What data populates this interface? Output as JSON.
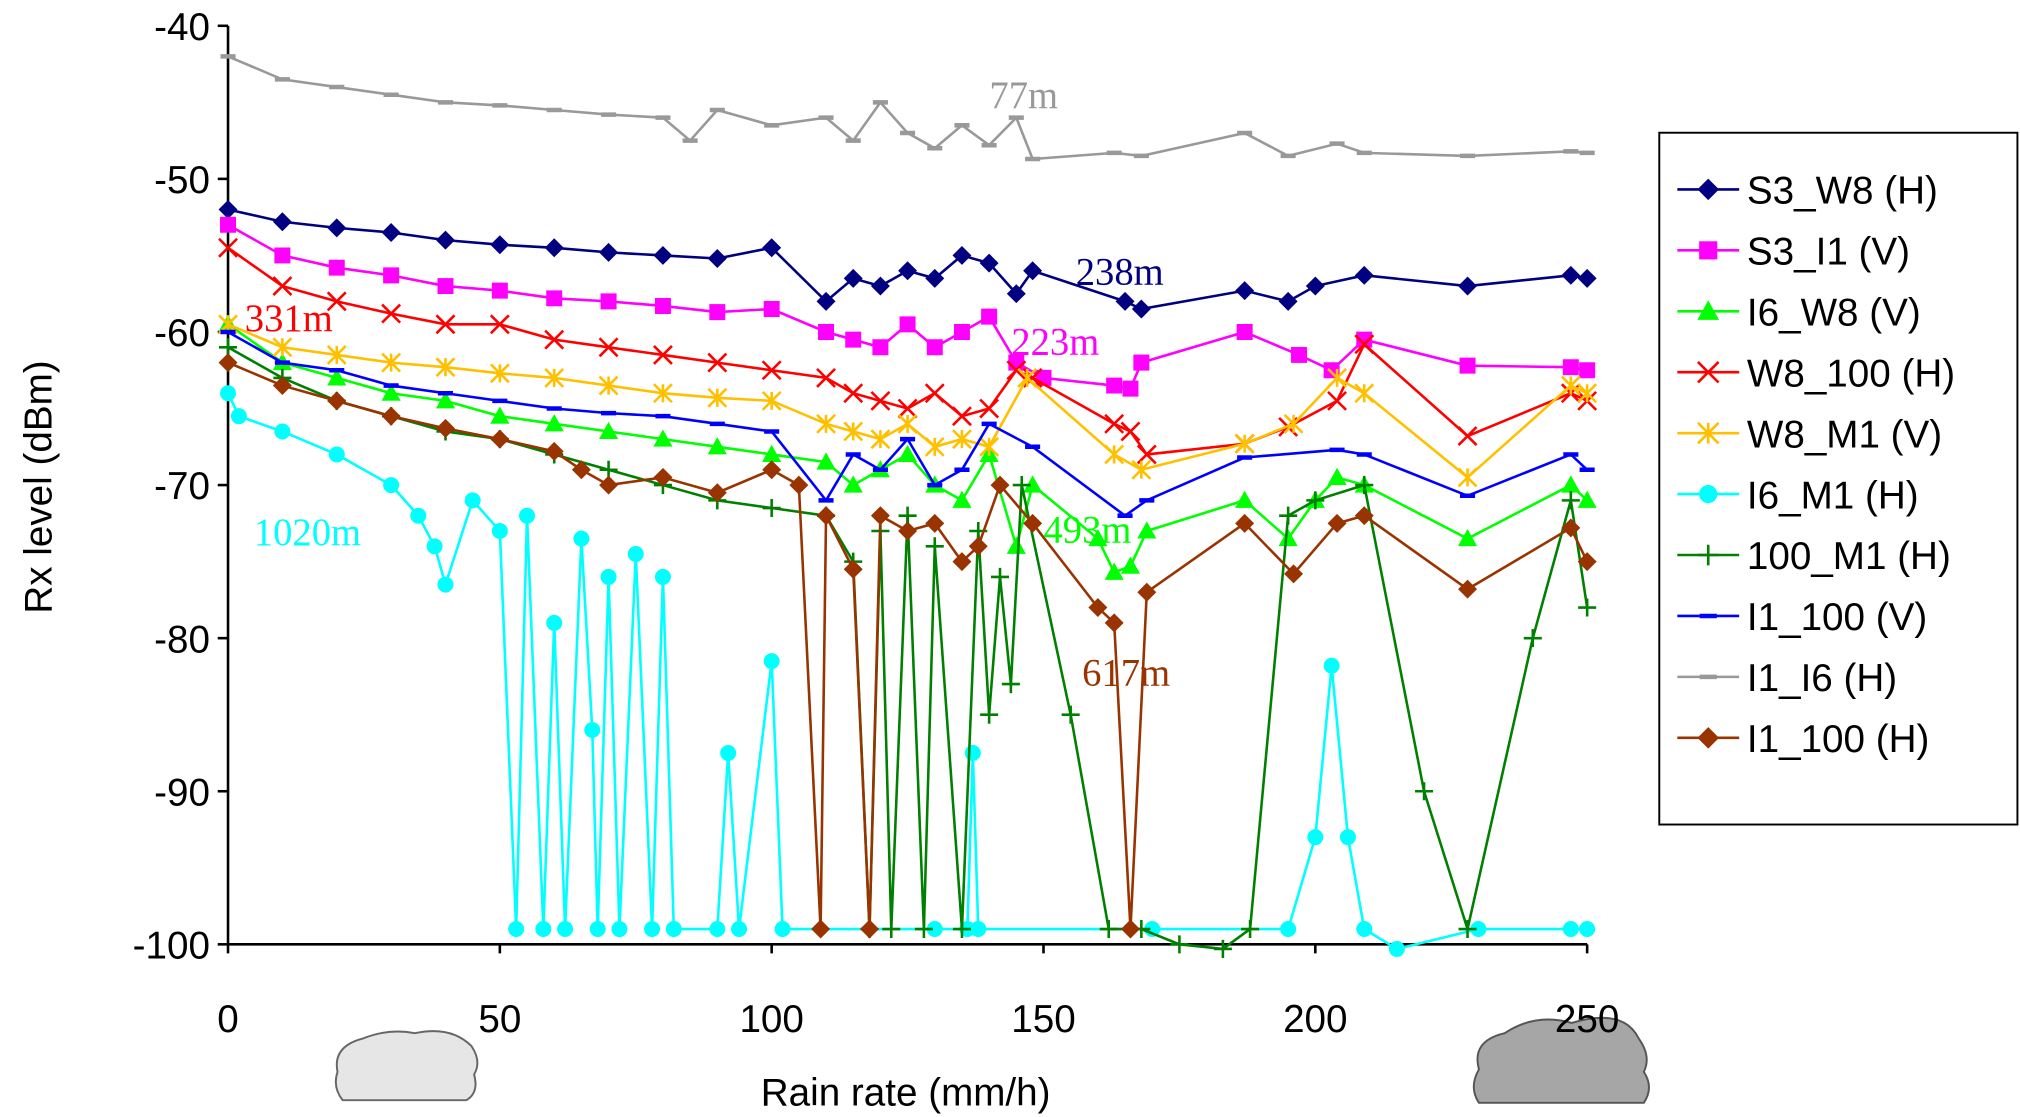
{
  "chart_data": {
    "type": "line",
    "x_label": "Rain rate (mm/h)",
    "y_label": "Rx level (dBm)",
    "xlim": [
      0,
      250
    ],
    "xticks": [
      0,
      50,
      100,
      150,
      200,
      250
    ],
    "ylim": [
      -100,
      -40
    ],
    "yticks": [
      -40,
      -50,
      -60,
      -70,
      -80,
      -90,
      -100
    ],
    "legend": "right",
    "series": [
      {
        "name": "S3_W8 (H)",
        "color": "#000080",
        "marker": "diamond",
        "x": [
          0,
          10,
          20,
          30,
          40,
          50,
          60,
          70,
          80,
          90,
          100,
          110,
          115,
          120,
          125,
          130,
          135,
          140,
          145,
          148,
          165,
          168,
          187,
          195,
          200,
          209,
          228,
          247,
          250
        ],
        "values": [
          -52,
          -52.8,
          -53.2,
          -53.5,
          -54,
          -54.3,
          -54.5,
          -54.8,
          -55,
          -55.2,
          -54.5,
          -58,
          -56.5,
          -57,
          -56,
          -56.5,
          -55,
          -55.5,
          -57.5,
          -56,
          -58,
          -58.5,
          -57.3,
          -58,
          -57,
          -56.3,
          -57,
          -56.3,
          -56.5
        ]
      },
      {
        "name": "S3_I1 (V)",
        "color": "#ff00ff",
        "marker": "square",
        "x": [
          0,
          10,
          20,
          30,
          40,
          50,
          60,
          70,
          80,
          90,
          100,
          110,
          115,
          120,
          125,
          130,
          135,
          140,
          145,
          150,
          163,
          166,
          168,
          187,
          197,
          203,
          209,
          228,
          247,
          250
        ],
        "values": [
          -53,
          -55,
          -55.8,
          -56.3,
          -57,
          -57.3,
          -57.8,
          -58,
          -58.3,
          -58.7,
          -58.5,
          -60,
          -60.5,
          -61,
          -59.5,
          -61,
          -60,
          -59,
          -62,
          -63,
          -63.5,
          -63.7,
          -62,
          -60,
          -61.5,
          -62.5,
          -60.5,
          -62.2,
          -62.3,
          -62.5
        ]
      },
      {
        "name": "I6_W8 (V)",
        "color": "#00ff00",
        "marker": "triangle",
        "x": [
          0,
          10,
          20,
          30,
          40,
          50,
          60,
          70,
          80,
          90,
          100,
          110,
          115,
          120,
          125,
          130,
          135,
          140,
          145,
          148,
          160,
          163,
          166,
          169,
          187,
          195,
          200,
          204,
          209,
          228,
          247,
          250
        ],
        "values": [
          -59.5,
          -62,
          -63,
          -64,
          -64.5,
          -65.5,
          -66,
          -66.5,
          -67,
          -67.5,
          -68,
          -68.5,
          -70,
          -69,
          -68,
          -70,
          -71,
          -68,
          -74,
          -70,
          -73.5,
          -75.7,
          -75.3,
          -73,
          -71,
          -73.5,
          -71,
          -69.5,
          -70,
          -73.5,
          -70,
          -71
        ]
      },
      {
        "name": "W8_100 (H)",
        "color": "#ff0000",
        "marker": "x",
        "x": [
          0,
          10,
          20,
          30,
          40,
          50,
          60,
          70,
          80,
          90,
          100,
          110,
          115,
          120,
          125,
          130,
          135,
          140,
          145,
          148,
          163,
          166,
          169,
          187,
          195,
          204,
          209,
          228,
          247,
          250
        ],
        "values": [
          -54.5,
          -57,
          -58,
          -58.8,
          -59.5,
          -59.5,
          -60.5,
          -61,
          -61.5,
          -62,
          -62.5,
          -63,
          -64,
          -64.5,
          -65,
          -64,
          -65.5,
          -65,
          -62.5,
          -63,
          -66,
          -66.5,
          -68,
          -67.3,
          -66.2,
          -64.5,
          -60.8,
          -66.8,
          -64,
          -64.5
        ]
      },
      {
        "name": "W8_M1 (V)",
        "color": "#ffc000",
        "marker": "star",
        "x": [
          0,
          10,
          20,
          30,
          40,
          50,
          60,
          70,
          80,
          90,
          100,
          110,
          115,
          120,
          125,
          130,
          135,
          140,
          147,
          163,
          168,
          187,
          196,
          204,
          209,
          228,
          247,
          250
        ],
        "values": [
          -59.5,
          -61,
          -61.5,
          -62,
          -62.3,
          -62.7,
          -63,
          -63.5,
          -64,
          -64.3,
          -64.5,
          -66,
          -66.5,
          -67,
          -66,
          -67.5,
          -67,
          -67.5,
          -63,
          -68,
          -69,
          -67.3,
          -66,
          -63,
          -64,
          -69.5,
          -63.5,
          -64
        ]
      },
      {
        "name": "I6_M1 (H)",
        "color": "#00ffff",
        "marker": "circle",
        "x": [
          0,
          2,
          10,
          20,
          30,
          35,
          38,
          40,
          45,
          50,
          53,
          55,
          58,
          60,
          62,
          65,
          67,
          68,
          70,
          72,
          75,
          78,
          80,
          82,
          90,
          92,
          94,
          100,
          102,
          130,
          136,
          137,
          138,
          170,
          195,
          200,
          203,
          206,
          209,
          215,
          230,
          247,
          250
        ],
        "values": [
          -64,
          -65.5,
          -66.5,
          -68,
          -70,
          -72,
          -74,
          -76.5,
          -71,
          -73,
          -99,
          -72,
          -99,
          -79,
          -99,
          -73.5,
          -86,
          -99,
          -76,
          -99,
          -74.5,
          -99,
          -76,
          -99,
          -99,
          -87.5,
          -99,
          -81.5,
          -99,
          -99,
          -99,
          -87.5,
          -99,
          -99,
          -99,
          -93,
          -81.8,
          -93,
          -99,
          -100.3,
          -99,
          -99,
          -99
        ]
      },
      {
        "name": "100_M1 (H)",
        "color": "#008000",
        "marker": "plus",
        "x": [
          0,
          10,
          20,
          30,
          40,
          50,
          60,
          70,
          80,
          90,
          100,
          110,
          115,
          118,
          120,
          122,
          125,
          128,
          130,
          135,
          138,
          140,
          142,
          144,
          146,
          155,
          162,
          168,
          175,
          183,
          188,
          195,
          200,
          209,
          220,
          228,
          240,
          247,
          250
        ],
        "values": [
          -61,
          -63,
          -64.5,
          -65.5,
          -66.5,
          -67,
          -68,
          -69,
          -70,
          -71,
          -71.5,
          -72,
          -75,
          -99,
          -73,
          -99,
          -72,
          -99,
          -74,
          -99,
          -73,
          -85,
          -76,
          -83,
          -70,
          -85,
          -99,
          -99,
          -100,
          -100.3,
          -99,
          -72,
          -71,
          -70,
          -90,
          -99,
          -80,
          -71,
          -78
        ]
      },
      {
        "name": "I1_100 (V)",
        "color": "#0000ff",
        "marker": "dash",
        "x": [
          0,
          10,
          20,
          30,
          40,
          50,
          60,
          70,
          80,
          90,
          100,
          110,
          115,
          120,
          125,
          130,
          135,
          140,
          148,
          165,
          169,
          187,
          204,
          209,
          228,
          247,
          250
        ],
        "values": [
          -60,
          -62,
          -62.5,
          -63.5,
          -64,
          -64.5,
          -65,
          -65.3,
          -65.5,
          -66,
          -66.5,
          -71,
          -68,
          -69,
          -67,
          -70,
          -69,
          -66,
          -67.5,
          -72,
          -71,
          -68.2,
          -67.7,
          -68,
          -70.7,
          -68,
          -69
        ]
      },
      {
        "name": "I1_I6 (H)",
        "color": "#999999",
        "marker": "dash",
        "x": [
          0,
          10,
          20,
          30,
          40,
          50,
          60,
          70,
          80,
          85,
          90,
          100,
          110,
          115,
          120,
          125,
          130,
          135,
          140,
          145,
          148,
          163,
          168,
          187,
          195,
          204,
          209,
          228,
          247,
          250
        ],
        "values": [
          -42,
          -43.5,
          -44,
          -44.5,
          -45,
          -45.2,
          -45.5,
          -45.8,
          -46,
          -47.5,
          -45.5,
          -46.5,
          -46,
          -47.5,
          -45,
          -47,
          -48,
          -46.5,
          -47.8,
          -46,
          -48.7,
          -48.3,
          -48.5,
          -47,
          -48.5,
          -47.7,
          -48.3,
          -48.5,
          -48.2,
          -48.3
        ]
      },
      {
        "name": "I1_100 (H)",
        "color": "#993300",
        "marker": "diamond",
        "x": [
          0,
          10,
          20,
          30,
          40,
          50,
          60,
          65,
          70,
          80,
          90,
          100,
          105,
          109,
          110,
          115,
          118,
          120,
          125,
          130,
          135,
          138,
          142,
          148,
          160,
          163,
          166,
          169,
          187,
          196,
          204,
          209,
          228,
          247,
          250
        ],
        "values": [
          -62,
          -63.5,
          -64.5,
          -65.5,
          -66.3,
          -67,
          -67.8,
          -69,
          -70,
          -69.5,
          -70.5,
          -69,
          -70,
          -99,
          -72,
          -75.5,
          -99,
          -72,
          -73,
          -72.5,
          -75,
          -74,
          -70,
          -72.5,
          -78,
          -79,
          -99,
          -77,
          -72.5,
          -75.8,
          -72.5,
          -72,
          -76.8,
          -72.8,
          -75
        ]
      }
    ],
    "annotations": [
      {
        "text": "77m",
        "color": "#999999"
      },
      {
        "text": "238m",
        "color": "#000080"
      },
      {
        "text": "223m",
        "color": "#ff00ff"
      },
      {
        "text": "331m",
        "color": "#ff0000"
      },
      {
        "text": "1020m",
        "color": "#00ffff"
      },
      {
        "text": "493m",
        "color": "#00ff00"
      },
      {
        "text": "617m",
        "color": "#993300"
      }
    ]
  }
}
